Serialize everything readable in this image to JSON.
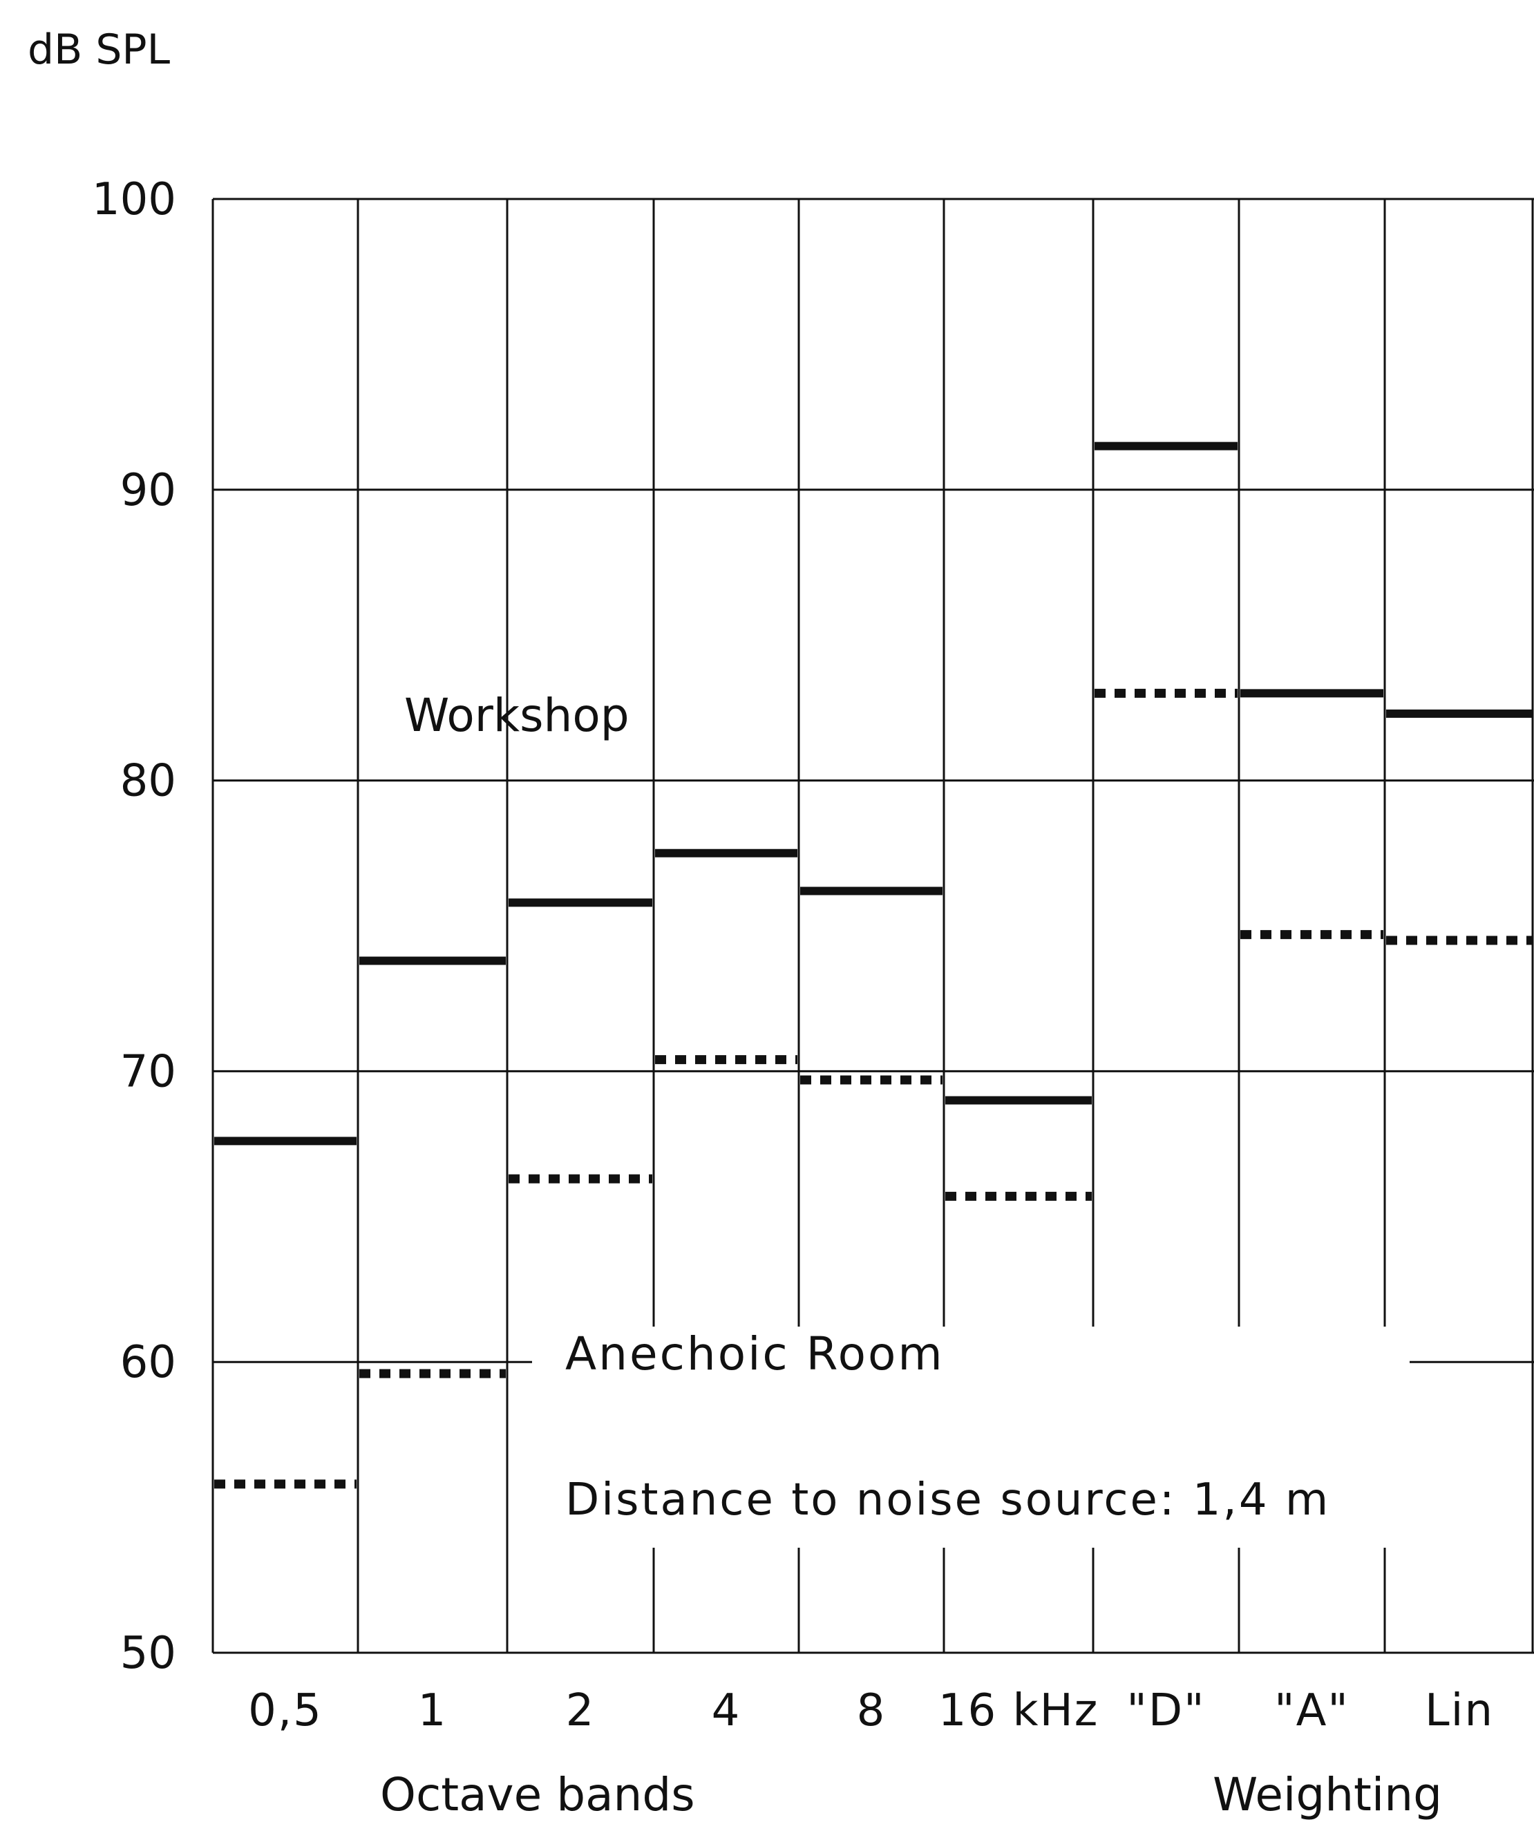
{
  "chart_data": {
    "type": "step",
    "ylabel": "dB SPL",
    "xlabel": "Octave bands",
    "xlabel_secondary": "Weighting",
    "ylim": [
      50,
      100
    ],
    "yticks": [
      "100",
      "90",
      "80",
      "70",
      "60",
      "50"
    ],
    "categories": [
      "0,5",
      "1",
      "2",
      "4",
      "8",
      "16 kHz",
      "\"D\"",
      "\"A\"",
      "Lin"
    ],
    "series": [
      {
        "name": "Workshop",
        "style": "solid",
        "values": [
          67.6,
          73.8,
          75.8,
          77.5,
          76.2,
          69.0,
          91.5,
          83.0,
          82.3
        ]
      },
      {
        "name": "Anechoic Room",
        "style": "dotted",
        "values": [
          55.8,
          59.6,
          66.3,
          70.4,
          69.7,
          65.7,
          83.0,
          74.7,
          74.5
        ]
      }
    ],
    "annotation": "Distance to noise source: 1,4 m",
    "grid": true
  }
}
